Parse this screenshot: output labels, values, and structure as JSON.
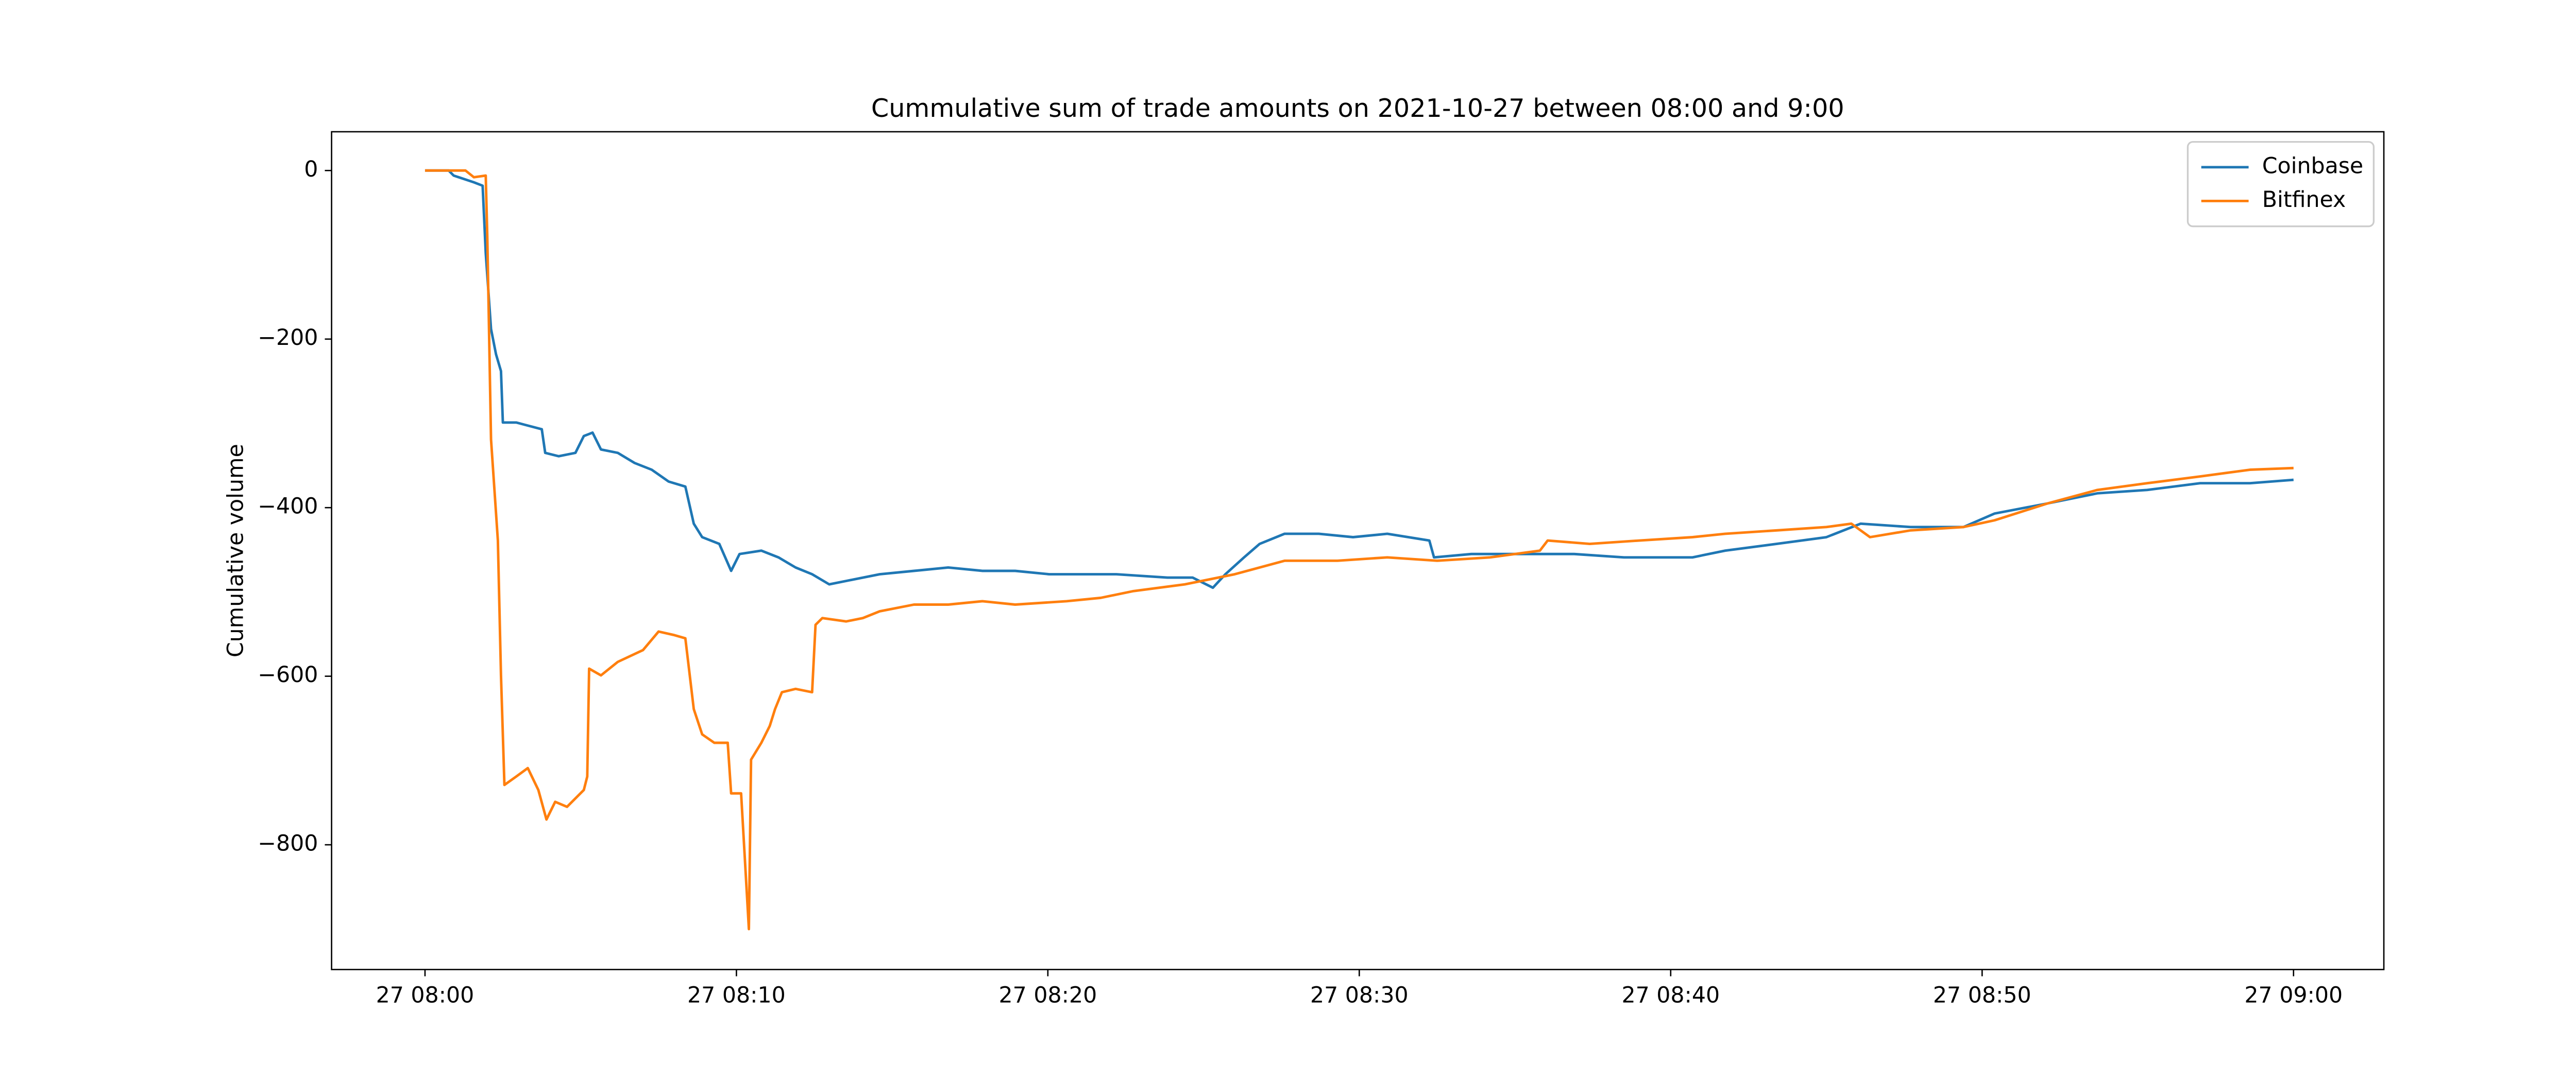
{
  "chart_data": {
    "type": "line",
    "title": "Cummulative sum of trade amounts on 2021-10-27 between 08:00 and 9:00",
    "ylabel": "Cumulative volume",
    "xlim": [
      -3,
      62.9
    ],
    "ylim": [
      -948,
      46
    ],
    "xticks": [
      {
        "value": 0,
        "label": "27 08:00"
      },
      {
        "value": 10,
        "label": "27 08:10"
      },
      {
        "value": 20,
        "label": "27 08:20"
      },
      {
        "value": 30,
        "label": "27 08:30"
      },
      {
        "value": 40,
        "label": "27 08:40"
      },
      {
        "value": 50,
        "label": "27 08:50"
      },
      {
        "value": 60,
        "label": "27 09:00"
      }
    ],
    "yticks": [
      {
        "value": 0,
        "label": "0"
      },
      {
        "value": -200,
        "label": "−200"
      },
      {
        "value": -400,
        "label": "−400"
      },
      {
        "value": -600,
        "label": "−600"
      },
      {
        "value": -800,
        "label": "−800"
      }
    ],
    "grid": false,
    "legend": "upper right",
    "series": [
      {
        "name": "Coinbase",
        "color": "#1f77b4",
        "x": [
          0,
          0.76,
          0.92,
          1.57,
          1.85,
          1.95,
          2.12,
          2.28,
          2.44,
          2.5,
          2.93,
          3.75,
          3.86,
          4.29,
          4.83,
          5.1,
          5.38,
          5.65,
          6.19,
          6.73,
          7.28,
          7.82,
          8.36,
          8.63,
          8.9,
          9.45,
          9.83,
          10.1,
          10.8,
          11.35,
          11.9,
          12.43,
          12.98,
          13.52,
          14.6,
          15.7,
          16.8,
          17.9,
          18.95,
          20.04,
          21.1,
          22.2,
          23.84,
          24.65,
          25.3,
          25.7,
          26.3,
          26.8,
          27.6,
          28.7,
          29.8,
          30.9,
          32.25,
          32.4,
          33.6,
          35.2,
          36.9,
          38.5,
          40.7,
          41.75,
          43.4,
          45.0,
          46.1,
          47.7,
          49.4,
          50.4,
          52.1,
          53.7,
          55.3,
          57.0,
          58.6,
          60
        ],
        "values": [
          0,
          0,
          -6,
          -14,
          -18,
          -98,
          -188,
          -218,
          -238,
          -299,
          -299,
          -307,
          -335,
          -339,
          -335,
          -315,
          -311,
          -331,
          -335,
          -347,
          -355,
          -369,
          -375,
          -419,
          -435,
          -443,
          -475,
          -455,
          -451,
          -459,
          -471,
          -479,
          -491,
          -487,
          -479,
          -475,
          -471,
          -475,
          -475,
          -479,
          -479,
          -479,
          -483,
          -483,
          -495,
          -479,
          -459,
          -443,
          -431,
          -431,
          -435,
          -431,
          -439,
          -459,
          -455,
          -455,
          -455,
          -459,
          -459,
          -451,
          -443,
          -435,
          -419,
          -423,
          -423,
          -407,
          -395,
          -383,
          -379,
          -371,
          -371,
          -367
        ]
      },
      {
        "name": "Bitfinex",
        "color": "#ff7f0e",
        "x": [
          0,
          1.3,
          1.57,
          1.95,
          2.0,
          2.12,
          2.34,
          2.44,
          2.55,
          2.93,
          3.3,
          3.64,
          3.9,
          4.18,
          4.56,
          5.1,
          5.21,
          5.27,
          5.65,
          6.19,
          7.0,
          7.5,
          7.98,
          8.36,
          8.63,
          8.9,
          9.29,
          9.72,
          9.83,
          10.15,
          10.4,
          10.47,
          10.8,
          11.07,
          11.24,
          11.46,
          11.9,
          12.43,
          12.54,
          12.76,
          13.52,
          14.06,
          14.6,
          15.7,
          16.8,
          17.9,
          18.95,
          20.6,
          21.7,
          22.75,
          24.4,
          26.0,
          27.6,
          29.3,
          30.9,
          32.5,
          34.2,
          35.8,
          36.05,
          37.4,
          39.0,
          40.7,
          41.75,
          43.4,
          45.0,
          45.8,
          46.4,
          47.7,
          49.4,
          50.4,
          52.1,
          53.7,
          55.3,
          57.0,
          58.6,
          60
        ],
        "values": [
          0,
          0,
          -8,
          -6,
          -78,
          -319,
          -439,
          -599,
          -729,
          -719,
          -709,
          -735,
          -770,
          -749,
          -755,
          -735,
          -719,
          -591,
          -599,
          -583,
          -569,
          -547,
          -551,
          -555,
          -639,
          -669,
          -679,
          -679,
          -739,
          -739,
          -900,
          -699,
          -679,
          -659,
          -639,
          -619,
          -615,
          -619,
          -539,
          -531,
          -535,
          -531,
          -523,
          -515,
          -515,
          -511,
          -515,
          -511,
          -507,
          -499,
          -491,
          -479,
          -463,
          -463,
          -459,
          -463,
          -459,
          -451,
          -439,
          -443,
          -439,
          -435,
          -431,
          -427,
          -423,
          -419,
          -435,
          -427,
          -423,
          -415,
          -395,
          -379,
          -371,
          -363,
          -355,
          -353
        ]
      }
    ]
  }
}
